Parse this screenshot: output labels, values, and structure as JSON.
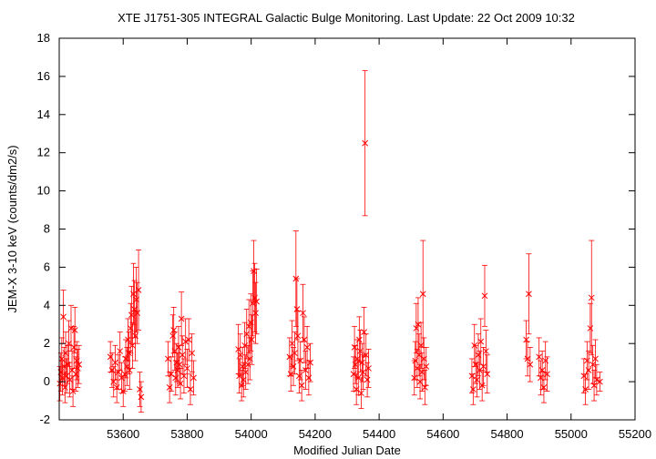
{
  "chart_data": {
    "type": "scatter",
    "title": "XTE J1751-305   INTEGRAL Galactic Bulge Monitoring.  Last Update: 22 Oct 2009 10:32",
    "xlabel": "Modified Julian Date",
    "ylabel": "JEM-X 3-10 keV (counts/dm2/s)",
    "xlim": [
      53400,
      55200
    ],
    "ylim": [
      -2,
      18
    ],
    "x_ticks": [
      53600,
      53800,
      54000,
      54200,
      54400,
      54600,
      54800,
      55000,
      55200
    ],
    "y_ticks": [
      -2,
      0,
      2,
      4,
      6,
      8,
      10,
      12,
      14,
      16,
      18
    ],
    "grid": false,
    "legend": "none",
    "colors": {
      "data": "#ff0000",
      "axes": "#000000",
      "background": "#ffffff"
    },
    "series": [
      {
        "marker": "x",
        "error_bars": true,
        "points": [
          {
            "x": 53402,
            "y": -0.1,
            "err": 0.9
          },
          {
            "x": 53405,
            "y": 0.5,
            "err": 1.0
          },
          {
            "x": 53408,
            "y": 1.2,
            "err": 1.1
          },
          {
            "x": 53410,
            "y": 0.2,
            "err": 0.9
          },
          {
            "x": 53413,
            "y": 3.4,
            "err": 1.4
          },
          {
            "x": 53415,
            "y": 0.8,
            "err": 1.0
          },
          {
            "x": 53418,
            "y": -0.3,
            "err": 0.8
          },
          {
            "x": 53420,
            "y": 1.5,
            "err": 1.1
          },
          {
            "x": 53423,
            "y": 0.3,
            "err": 0.9
          },
          {
            "x": 53426,
            "y": 0.9,
            "err": 1.0
          },
          {
            "x": 53430,
            "y": 2.0,
            "err": 1.2
          },
          {
            "x": 53433,
            "y": 0.1,
            "err": 0.9
          },
          {
            "x": 53437,
            "y": 2.8,
            "err": 1.2
          },
          {
            "x": 53440,
            "y": 0.6,
            "err": 1.0
          },
          {
            "x": 53443,
            "y": -0.5,
            "err": 0.8
          },
          {
            "x": 53446,
            "y": 1.8,
            "err": 1.1
          },
          {
            "x": 53449,
            "y": 2.7,
            "err": 1.2
          },
          {
            "x": 53452,
            "y": 0.4,
            "err": 0.9
          },
          {
            "x": 53455,
            "y": 1.1,
            "err": 1.0
          },
          {
            "x": 53458,
            "y": 0.7,
            "err": 1.0
          },
          {
            "x": 53462,
            "y": 0.9,
            "err": 1.0
          },
          {
            "x": 53560,
            "y": 1.3,
            "err": 0.8
          },
          {
            "x": 53565,
            "y": 0.6,
            "err": 0.9
          },
          {
            "x": 53570,
            "y": 0.0,
            "err": 0.8
          },
          {
            "x": 53575,
            "y": 1.0,
            "err": 0.9
          },
          {
            "x": 53580,
            "y": -0.3,
            "err": 0.8
          },
          {
            "x": 53585,
            "y": 0.5,
            "err": 0.9
          },
          {
            "x": 53590,
            "y": 1.6,
            "err": 1.0
          },
          {
            "x": 53595,
            "y": 0.2,
            "err": 0.8
          },
          {
            "x": 53600,
            "y": -0.5,
            "err": 0.8
          },
          {
            "x": 53605,
            "y": 0.4,
            "err": 0.9
          },
          {
            "x": 53608,
            "y": 1.2,
            "err": 1.0
          },
          {
            "x": 53612,
            "y": 0.8,
            "err": 1.0
          },
          {
            "x": 53615,
            "y": 2.2,
            "err": 1.1
          },
          {
            "x": 53618,
            "y": 1.5,
            "err": 1.1
          },
          {
            "x": 53620,
            "y": 0.6,
            "err": 1.0
          },
          {
            "x": 53623,
            "y": 2.8,
            "err": 1.3
          },
          {
            "x": 53626,
            "y": 3.5,
            "err": 1.5
          },
          {
            "x": 53629,
            "y": 1.9,
            "err": 1.2
          },
          {
            "x": 53632,
            "y": 4.6,
            "err": 1.6
          },
          {
            "x": 53635,
            "y": 3.8,
            "err": 1.5
          },
          {
            "x": 53638,
            "y": 2.4,
            "err": 1.3
          },
          {
            "x": 53641,
            "y": 4.3,
            "err": 1.7
          },
          {
            "x": 53644,
            "y": 3.6,
            "err": 1.6
          },
          {
            "x": 53648,
            "y": 4.8,
            "err": 2.1
          },
          {
            "x": 53652,
            "y": -0.4,
            "err": 0.9
          },
          {
            "x": 53656,
            "y": -0.8,
            "err": 0.8
          },
          {
            "x": 53740,
            "y": 1.2,
            "err": 0.9
          },
          {
            "x": 53745,
            "y": -0.3,
            "err": 0.8
          },
          {
            "x": 53750,
            "y": 0.4,
            "err": 0.9
          },
          {
            "x": 53755,
            "y": 2.4,
            "err": 1.1
          },
          {
            "x": 53758,
            "y": 2.7,
            "err": 1.2
          },
          {
            "x": 53761,
            "y": 1.6,
            "err": 1.0
          },
          {
            "x": 53764,
            "y": 0.2,
            "err": 0.9
          },
          {
            "x": 53767,
            "y": 1.0,
            "err": 1.0
          },
          {
            "x": 53770,
            "y": 0.6,
            "err": 0.9
          },
          {
            "x": 53773,
            "y": 1.8,
            "err": 1.1
          },
          {
            "x": 53776,
            "y": 0.9,
            "err": 1.0
          },
          {
            "x": 53779,
            "y": -0.1,
            "err": 0.8
          },
          {
            "x": 53782,
            "y": 3.3,
            "err": 1.4
          },
          {
            "x": 53785,
            "y": 1.4,
            "err": 1.0
          },
          {
            "x": 53790,
            "y": 0.3,
            "err": 0.9
          },
          {
            "x": 53795,
            "y": 2.1,
            "err": 1.2
          },
          {
            "x": 53800,
            "y": 0.7,
            "err": 1.0
          },
          {
            "x": 53805,
            "y": 2.2,
            "err": 1.1
          },
          {
            "x": 53810,
            "y": -0.4,
            "err": 0.8
          },
          {
            "x": 53815,
            "y": 1.5,
            "err": 1.0
          },
          {
            "x": 53820,
            "y": 0.2,
            "err": 0.9
          },
          {
            "x": 53960,
            "y": 1.7,
            "err": 1.3
          },
          {
            "x": 53963,
            "y": 0.3,
            "err": 0.9
          },
          {
            "x": 53966,
            "y": 1.4,
            "err": 1.1
          },
          {
            "x": 53970,
            "y": -0.2,
            "err": 0.8
          },
          {
            "x": 53973,
            "y": 0.8,
            "err": 1.0
          },
          {
            "x": 53976,
            "y": 0.1,
            "err": 0.9
          },
          {
            "x": 53980,
            "y": 1.9,
            "err": 1.2
          },
          {
            "x": 53983,
            "y": 0.5,
            "err": 0.9
          },
          {
            "x": 53986,
            "y": 2.5,
            "err": 1.3
          },
          {
            "x": 53990,
            "y": 0.9,
            "err": 1.0
          },
          {
            "x": 53993,
            "y": 2.9,
            "err": 1.4
          },
          {
            "x": 53996,
            "y": 1.2,
            "err": 1.1
          },
          {
            "x": 53999,
            "y": 3.1,
            "err": 1.5
          },
          {
            "x": 54002,
            "y": 2.2,
            "err": 1.3
          },
          {
            "x": 54005,
            "y": 4.1,
            "err": 1.7
          },
          {
            "x": 54008,
            "y": 5.8,
            "err": 1.6
          },
          {
            "x": 54011,
            "y": 4.4,
            "err": 1.8
          },
          {
            "x": 54014,
            "y": 3.6,
            "err": 1.6
          },
          {
            "x": 54017,
            "y": 4.2,
            "err": 1.7
          },
          {
            "x": 54120,
            "y": 1.3,
            "err": 1.0
          },
          {
            "x": 54124,
            "y": 0.4,
            "err": 0.9
          },
          {
            "x": 54128,
            "y": 2.0,
            "err": 1.2
          },
          {
            "x": 54132,
            "y": 0.8,
            "err": 1.0
          },
          {
            "x": 54136,
            "y": 1.5,
            "err": 1.1
          },
          {
            "x": 54140,
            "y": 5.4,
            "err": 2.5
          },
          {
            "x": 54143,
            "y": 3.8,
            "err": 1.6
          },
          {
            "x": 54146,
            "y": 2.4,
            "err": 1.3
          },
          {
            "x": 54150,
            "y": 0.3,
            "err": 0.9
          },
          {
            "x": 54154,
            "y": 1.1,
            "err": 1.0
          },
          {
            "x": 54158,
            "y": -0.2,
            "err": 0.8
          },
          {
            "x": 54162,
            "y": 3.6,
            "err": 1.5
          },
          {
            "x": 54166,
            "y": 2.2,
            "err": 1.2
          },
          {
            "x": 54170,
            "y": 0.6,
            "err": 1.0
          },
          {
            "x": 54175,
            "y": 1.8,
            "err": 1.1
          },
          {
            "x": 54180,
            "y": 0.2,
            "err": 0.9
          },
          {
            "x": 54185,
            "y": 1.0,
            "err": 1.0
          },
          {
            "x": 54320,
            "y": 0.4,
            "err": 0.9
          },
          {
            "x": 54323,
            "y": 1.8,
            "err": 1.1
          },
          {
            "x": 54326,
            "y": 0.9,
            "err": 1.0
          },
          {
            "x": 54329,
            "y": -0.4,
            "err": 0.8
          },
          {
            "x": 54332,
            "y": 1.2,
            "err": 1.0
          },
          {
            "x": 54335,
            "y": 0.2,
            "err": 0.9
          },
          {
            "x": 54338,
            "y": 2.2,
            "err": 1.2
          },
          {
            "x": 54341,
            "y": 1.6,
            "err": 1.1
          },
          {
            "x": 54344,
            "y": -0.6,
            "err": 0.8
          },
          {
            "x": 54347,
            "y": 1.0,
            "err": 1.0
          },
          {
            "x": 54350,
            "y": 0.5,
            "err": 0.9
          },
          {
            "x": 54353,
            "y": 2.6,
            "err": 1.3
          },
          {
            "x": 54356,
            "y": 12.5,
            "err": 3.8
          },
          {
            "x": 54359,
            "y": 1.4,
            "err": 1.1
          },
          {
            "x": 54363,
            "y": 0.1,
            "err": 0.9
          },
          {
            "x": 54367,
            "y": 0.7,
            "err": 1.0
          },
          {
            "x": 54510,
            "y": 0.2,
            "err": 0.9
          },
          {
            "x": 54513,
            "y": 1.1,
            "err": 1.0
          },
          {
            "x": 54516,
            "y": 2.8,
            "err": 1.3
          },
          {
            "x": 54519,
            "y": 0.7,
            "err": 1.0
          },
          {
            "x": 54522,
            "y": 3.0,
            "err": 1.4
          },
          {
            "x": 54525,
            "y": 1.4,
            "err": 1.1
          },
          {
            "x": 54528,
            "y": 0.0,
            "err": 0.9
          },
          {
            "x": 54531,
            "y": 1.9,
            "err": 1.2
          },
          {
            "x": 54534,
            "y": 0.5,
            "err": 1.0
          },
          {
            "x": 54537,
            "y": 4.6,
            "err": 2.8
          },
          {
            "x": 54540,
            "y": 1.2,
            "err": 1.1
          },
          {
            "x": 54543,
            "y": -0.3,
            "err": 0.9
          },
          {
            "x": 54547,
            "y": 0.8,
            "err": 1.0
          },
          {
            "x": 54690,
            "y": 0.3,
            "err": 0.9
          },
          {
            "x": 54694,
            "y": -0.4,
            "err": 0.8
          },
          {
            "x": 54698,
            "y": 1.9,
            "err": 1.1
          },
          {
            "x": 54702,
            "y": 0.9,
            "err": 1.0
          },
          {
            "x": 54706,
            "y": 0.1,
            "err": 0.9
          },
          {
            "x": 54710,
            "y": 1.4,
            "err": 1.1
          },
          {
            "x": 54714,
            "y": 0.6,
            "err": 1.0
          },
          {
            "x": 54718,
            "y": 2.1,
            "err": 1.2
          },
          {
            "x": 54722,
            "y": -0.2,
            "err": 0.8
          },
          {
            "x": 54726,
            "y": 0.8,
            "err": 1.0
          },
          {
            "x": 54730,
            "y": 4.5,
            "err": 1.6
          },
          {
            "x": 54734,
            "y": 1.6,
            "err": 1.1
          },
          {
            "x": 54738,
            "y": 0.4,
            "err": 1.0
          },
          {
            "x": 54860,
            "y": 2.2,
            "err": 1.0
          },
          {
            "x": 54864,
            "y": 1.2,
            "err": 0.9
          },
          {
            "x": 54868,
            "y": 4.6,
            "err": 2.1
          },
          {
            "x": 54872,
            "y": 0.9,
            "err": 0.9
          },
          {
            "x": 54900,
            "y": 1.3,
            "err": 1.0
          },
          {
            "x": 54905,
            "y": 0.2,
            "err": 0.9
          },
          {
            "x": 54910,
            "y": 0.6,
            "err": 1.0
          },
          {
            "x": 54915,
            "y": -0.3,
            "err": 0.8
          },
          {
            "x": 54920,
            "y": 1.1,
            "err": 1.0
          },
          {
            "x": 54925,
            "y": 0.4,
            "err": 0.9
          },
          {
            "x": 55040,
            "y": 0.3,
            "err": 0.9
          },
          {
            "x": 55045,
            "y": -0.4,
            "err": 0.8
          },
          {
            "x": 55050,
            "y": 1.1,
            "err": 1.0
          },
          {
            "x": 55055,
            "y": 0.6,
            "err": 1.0
          },
          {
            "x": 55060,
            "y": 2.8,
            "err": 1.3
          },
          {
            "x": 55064,
            "y": 4.4,
            "err": 3.0
          },
          {
            "x": 55068,
            "y": 0.9,
            "err": 1.0
          },
          {
            "x": 55072,
            "y": -0.2,
            "err": 0.8
          },
          {
            "x": 55076,
            "y": 1.2,
            "err": 1.0
          },
          {
            "x": 55080,
            "y": 0.1,
            "err": 0.8
          },
          {
            "x": 55090,
            "y": 0.0,
            "err": 0.5
          }
        ]
      }
    ]
  }
}
